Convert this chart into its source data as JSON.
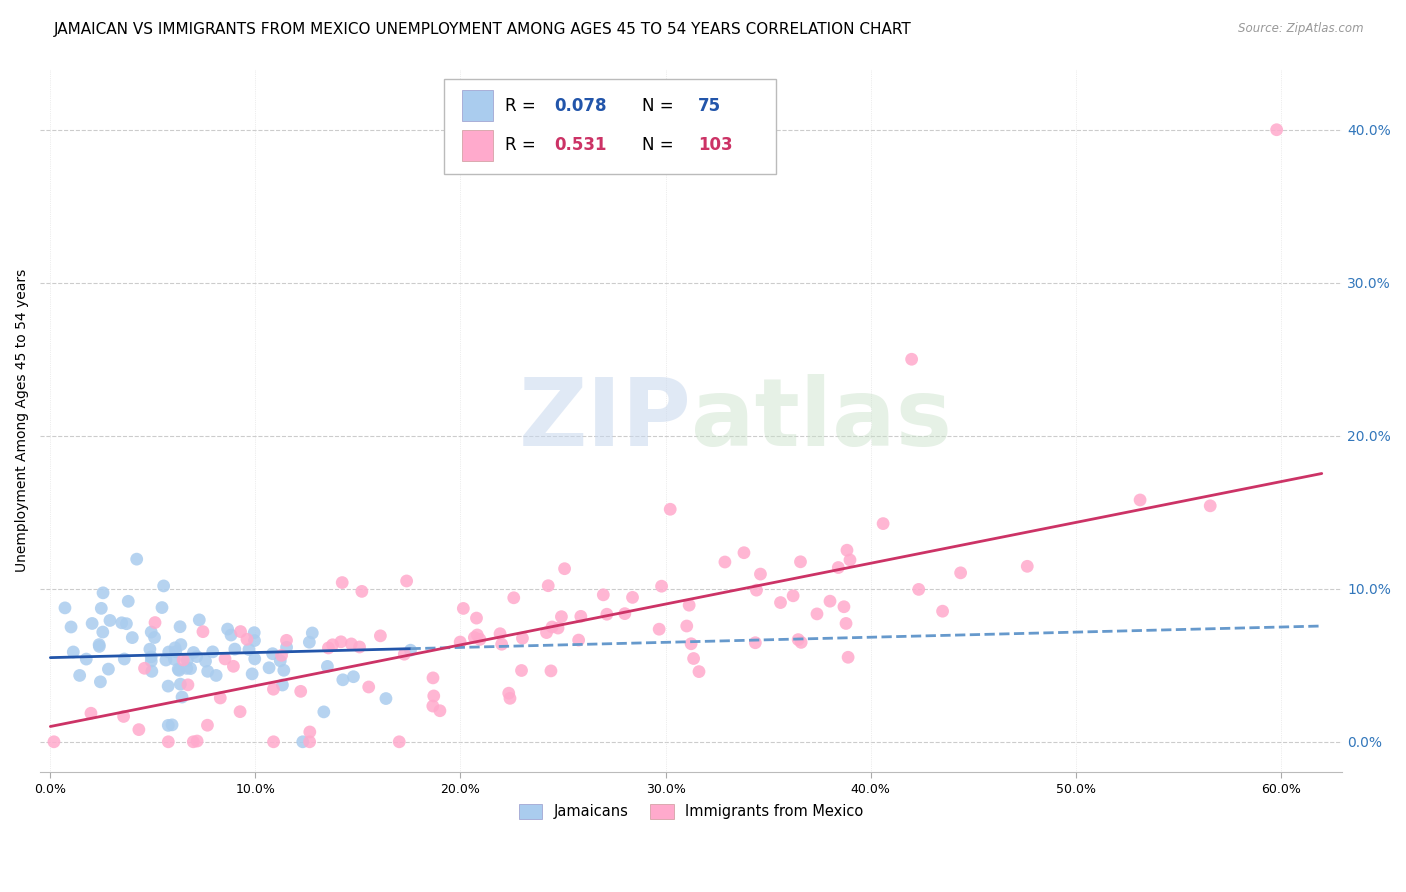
{
  "title": "JAMAICAN VS IMMIGRANTS FROM MEXICO UNEMPLOYMENT AMONG AGES 45 TO 54 YEARS CORRELATION CHART",
  "source": "Source: ZipAtlas.com",
  "ylabel": "Unemployment Among Ages 45 to 54 years",
  "ylim": [
    -0.02,
    0.44
  ],
  "xlim": [
    -0.005,
    0.63
  ],
  "x_tick_vals": [
    0.0,
    0.1,
    0.2,
    0.3,
    0.4,
    0.5,
    0.6
  ],
  "y_tick_vals": [
    0.0,
    0.1,
    0.2,
    0.3,
    0.4
  ],
  "blue_color": "#AACCEE",
  "pink_color": "#FFAACC",
  "blue_line_color": "#2255AA",
  "pink_line_color": "#CC3366",
  "blue_dashed_color": "#6699CC",
  "right_tick_color": "#3377BB",
  "watermark_zip": "ZIP",
  "watermark_atlas": "atlas",
  "jamaican_N": 75,
  "jamaican_R": 0.078,
  "mexico_N": 103,
  "mexico_R": 0.531,
  "title_fontsize": 11,
  "axis_label_fontsize": 10,
  "tick_fontsize": 9
}
